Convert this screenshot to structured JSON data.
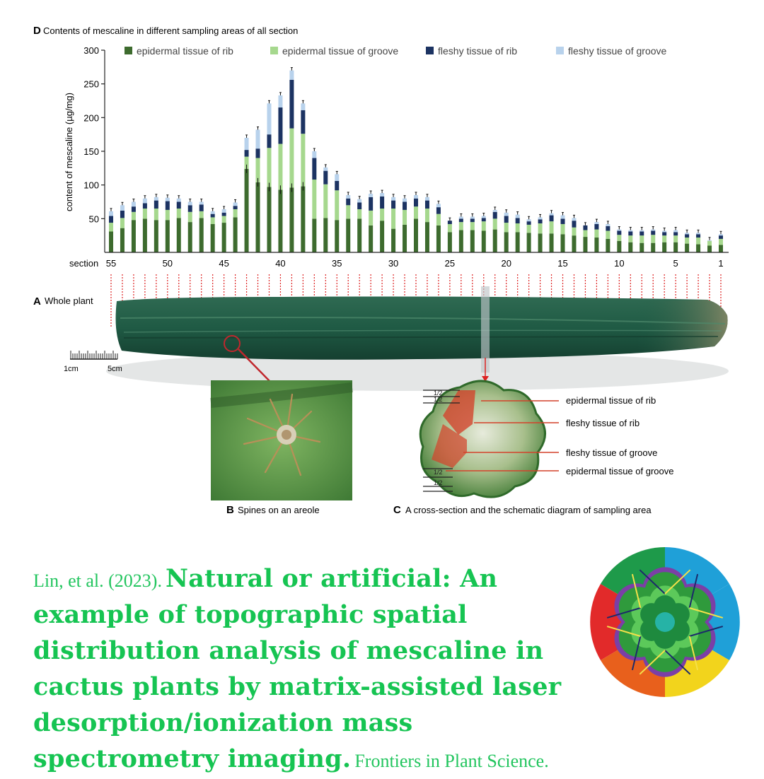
{
  "chart_data": {
    "type": "bar",
    "stacked": true,
    "title": "Contents of mescaline in different sampling areas of all section",
    "panel_label": "D",
    "ylabel": "content of mescaline (µg/mg)",
    "xlabel": "section",
    "ylim": [
      0,
      300
    ],
    "yticks": [
      50,
      100,
      150,
      200,
      250,
      300
    ],
    "x_tick_labels": [
      "55",
      "50",
      "45",
      "40",
      "35",
      "30",
      "25",
      "20",
      "15",
      "10",
      "5",
      "1"
    ],
    "x_tick_sections": [
      55,
      50,
      45,
      40,
      35,
      30,
      25,
      20,
      15,
      10,
      5,
      1
    ],
    "legend_position": "top",
    "grid": false,
    "sections": [
      55,
      54,
      53,
      52,
      51,
      50,
      49,
      48,
      47,
      46,
      45,
      44,
      43,
      42,
      41,
      40,
      39,
      38,
      37,
      36,
      35,
      34,
      33,
      32,
      31,
      30,
      29,
      28,
      27,
      26,
      25,
      24,
      23,
      22,
      21,
      20,
      19,
      18,
      17,
      16,
      15,
      14,
      13,
      12,
      11,
      10,
      9,
      8,
      7,
      6,
      5,
      4,
      3,
      2,
      1
    ],
    "series": [
      {
        "name": "epidermal tissue of rib",
        "color": "#3d6b2e",
        "values": [
          31,
          36,
          48,
          50,
          48,
          48,
          51,
          45,
          51,
          42,
          44,
          52,
          124,
          104,
          97,
          93,
          96,
          98,
          50,
          51,
          48,
          50,
          50,
          40,
          47,
          35,
          41,
          50,
          45,
          40,
          30,
          33,
          33,
          32,
          34,
          30,
          30,
          29,
          28,
          28,
          27,
          25,
          23,
          22,
          20,
          17,
          15,
          14,
          14,
          15,
          15,
          13,
          12,
          10,
          11
        ]
      },
      {
        "name": "epidermal tissue of groove",
        "color": "#a6d88e",
        "values": [
          13,
          15,
          12,
          15,
          17,
          15,
          14,
          15,
          10,
          10,
          10,
          12,
          18,
          36,
          58,
          68,
          88,
          78,
          58,
          50,
          44,
          20,
          14,
          22,
          18,
          30,
          22,
          18,
          20,
          17,
          12,
          12,
          12,
          14,
          16,
          14,
          13,
          12,
          15,
          18,
          15,
          12,
          10,
          12,
          12,
          9,
          10,
          11,
          12,
          10,
          10,
          9,
          10,
          7,
          9
        ]
      },
      {
        "name": "fleshy tissue of rib",
        "color": "#1c3362",
        "values": [
          10,
          11,
          8,
          8,
          12,
          13,
          10,
          10,
          10,
          5,
          5,
          5,
          10,
          14,
          20,
          54,
          72,
          35,
          32,
          20,
          14,
          10,
          10,
          20,
          18,
          12,
          12,
          12,
          12,
          10,
          5,
          5,
          5,
          5,
          10,
          10,
          8,
          5,
          6,
          9,
          8,
          10,
          7,
          8,
          7,
          6,
          6,
          6,
          6,
          5,
          5,
          5,
          5,
          0,
          5
        ]
      },
      {
        "name": "fleshy tissue of groove",
        "color": "#b8d2ec",
        "values": [
          7,
          8,
          7,
          7,
          5,
          5,
          5,
          5,
          4,
          4,
          5,
          5,
          18,
          28,
          46,
          18,
          14,
          10,
          10,
          5,
          10,
          5,
          5,
          5,
          5,
          5,
          5,
          5,
          5,
          5,
          0,
          3,
          3,
          3,
          3,
          5,
          5,
          3,
          3,
          3,
          5,
          4,
          0,
          3,
          3,
          2,
          2,
          2,
          2,
          2,
          3,
          2,
          2,
          1,
          2
        ]
      }
    ]
  },
  "figure": {
    "panel_a_letter": "A",
    "panel_a_text": "Whole plant",
    "panel_b_letter": "B",
    "panel_b_text": "Spines on an areole",
    "panel_c_letter": "C",
    "panel_c_text": "A cross-section and the schematic diagram of sampling area",
    "scale_left": "1cm",
    "scale_right": "5cm",
    "half_label": "1/2",
    "callouts": [
      "epidermal tissue of rib",
      "fleshy tissue of rib",
      "fleshy tissue of groove",
      "epidermal tissue of groove"
    ]
  },
  "citation": {
    "authors_year": "Lin, et al. (2023).",
    "title": "Natural or artificial: An example of topographic spatial distribution analysis of mescaline in cactus plants by matrix-assisted laser desorption/ionization mass spectrometry imaging.",
    "journal": "Frontiers in Plant Science."
  },
  "colors": {
    "accent_green": "#16c452",
    "logo_ring_purple": "#7b3fa6",
    "logo_quadrants": [
      "#1e9a4a",
      "#1fa0d8",
      "#f2d41c",
      "#e8601c",
      "#e22a2a"
    ]
  },
  "icons": [
    "cactus-logo-icon",
    "cactus-plant-image",
    "areole-photo",
    "cross-section-photo",
    "scale-bar-icon"
  ]
}
